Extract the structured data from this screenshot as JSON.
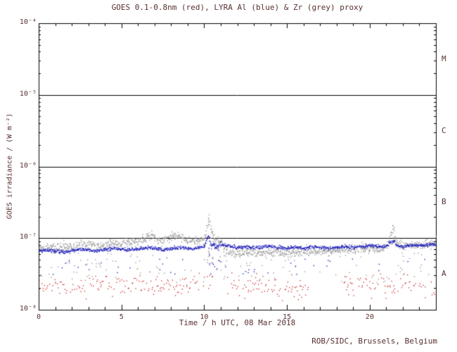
{
  "colors": {
    "text": "#5a2f2f",
    "axis": "#000000",
    "background": "#ffffff",
    "red_series": "#cc2020",
    "blue_series": "#2020bb",
    "grey_series": "#9a9a9a"
  },
  "chart_data": {
    "type": "scatter",
    "title": "GOES 0.1-0.8nm (red), LYRA Al (blue) & Zr (grey) proxy",
    "xlabel": "Time / h UTC, 08 Mar 2018",
    "ylabel": "GOES irradiance / (W m⁻²)",
    "footer": "ROB/SIDC, Brussels, Belgium",
    "xlim": [
      0,
      24
    ],
    "ylim_log10": [
      -8,
      -4
    ],
    "x_major_ticks": [
      0,
      5,
      10,
      15,
      20
    ],
    "x_minor_step_h": 1,
    "y_tick_labels": [
      "10⁻⁴",
      "10⁻⁵",
      "10⁻⁶",
      "10⁻⁷",
      "10⁻⁸"
    ],
    "y_tick_exponents": [
      -4,
      -5,
      -6,
      -7,
      -8
    ],
    "grid": false,
    "legend_position": "in-title",
    "flare_class_boundary_lines_log10": [
      -5,
      -6,
      -7
    ],
    "flare_class_labels": [
      {
        "label": "M",
        "log10_mid": -4.5
      },
      {
        "label": "C",
        "log10_mid": -5.5
      },
      {
        "label": "B",
        "log10_mid": -6.5
      },
      {
        "label": "A",
        "log10_mid": -7.5
      }
    ],
    "series": [
      {
        "name": "LYRA Zr proxy",
        "color": "#9a9a9a",
        "marker_px": 1.4,
        "step_h": 0.02,
        "drop_prob": 0.08,
        "noise_log10": 0.03,
        "gaps": [],
        "anchors": [
          [
            0,
            7.2e-08
          ],
          [
            0.5,
            7.6e-08
          ],
          [
            1,
            7.4e-08
          ],
          [
            1.5,
            7.8e-08
          ],
          [
            2,
            7.5e-08
          ],
          [
            2.5,
            8e-08
          ],
          [
            3,
            8.3e-08
          ],
          [
            3.5,
            7.9e-08
          ],
          [
            4,
            8.2e-08
          ],
          [
            4.5,
            8.6e-08
          ],
          [
            5,
            8.4e-08
          ],
          [
            5.5,
            8.8e-08
          ],
          [
            6,
            9.3e-08
          ],
          [
            6.5,
            1e-07
          ],
          [
            6.8,
            1.08e-07
          ],
          [
            7,
            1.02e-07
          ],
          [
            7.3,
            9.4e-08
          ],
          [
            7.6,
            9.8e-08
          ],
          [
            8,
            1.04e-07
          ],
          [
            8.3,
            1.1e-07
          ],
          [
            8.6,
            1.04e-07
          ],
          [
            9,
            9.6e-08
          ],
          [
            9.3,
            9.2e-08
          ],
          [
            9.6,
            9e-08
          ],
          [
            10,
            9.6e-08
          ],
          [
            10.25,
            1.9e-07
          ],
          [
            10.45,
            1.2e-07
          ],
          [
            10.7,
            9.5e-08
          ],
          [
            11,
            8.8e-08
          ],
          [
            11.2,
            7.2e-08
          ],
          [
            11.5,
            6.4e-08
          ],
          [
            12,
            6.2e-08
          ],
          [
            12.5,
            6.4e-08
          ],
          [
            13,
            6.1e-08
          ],
          [
            13.5,
            6.3e-08
          ],
          [
            14,
            6.6e-08
          ],
          [
            14.5,
            6.3e-08
          ],
          [
            15,
            6.2e-08
          ],
          [
            15.5,
            6.5e-08
          ],
          [
            16,
            6.4e-08
          ],
          [
            16.5,
            6.7e-08
          ],
          [
            17,
            6.6e-08
          ],
          [
            17.5,
            6.5e-08
          ],
          [
            18,
            6.8e-08
          ],
          [
            18.5,
            7e-08
          ],
          [
            19,
            6.9e-08
          ],
          [
            19.5,
            7.1e-08
          ],
          [
            20,
            7.4e-08
          ],
          [
            20.5,
            7.2e-08
          ],
          [
            21,
            7.4e-08
          ],
          [
            21.4,
            1.45e-07
          ],
          [
            21.6,
            8.6e-08
          ],
          [
            22,
            7.9e-08
          ],
          [
            22.5,
            8.2e-08
          ],
          [
            23,
            8.1e-08
          ],
          [
            23.5,
            8.5e-08
          ],
          [
            24,
            8.9e-08
          ]
        ],
        "outlier_groups": [
          {
            "count": 120,
            "x_range": [
              0,
              24
            ],
            "log10_range": [
              -7.62,
              -7.2
            ]
          },
          {
            "count": 25,
            "x_range": [
              10.15,
              11.0
            ],
            "log10_range": [
              -7.45,
              -6.95
            ]
          }
        ]
      },
      {
        "name": "LYRA Al proxy",
        "color": "#2020bb",
        "marker_px": 1.4,
        "step_h": 0.02,
        "drop_prob": 0.05,
        "noise_log10": 0.012,
        "gaps": [],
        "anchors": [
          [
            0,
            6.6e-08
          ],
          [
            0.5,
            6.9e-08
          ],
          [
            1,
            6.7e-08
          ],
          [
            1.5,
            6.5e-08
          ],
          [
            2,
            6.8e-08
          ],
          [
            2.5,
            7.1e-08
          ],
          [
            3,
            6.9e-08
          ],
          [
            3.5,
            6.7e-08
          ],
          [
            4,
            7e-08
          ],
          [
            4.5,
            7.3e-08
          ],
          [
            5,
            7.1e-08
          ],
          [
            5.5,
            6.9e-08
          ],
          [
            6,
            7.2e-08
          ],
          [
            6.5,
            7.5e-08
          ],
          [
            7,
            7.3e-08
          ],
          [
            7.5,
            7e-08
          ],
          [
            8,
            7.2e-08
          ],
          [
            8.5,
            7.5e-08
          ],
          [
            9,
            7.3e-08
          ],
          [
            9.5,
            7.4e-08
          ],
          [
            10,
            7.8e-08
          ],
          [
            10.25,
            1.15e-07
          ],
          [
            10.35,
            8.5e-08
          ],
          [
            10.7,
            7.6e-08
          ],
          [
            11,
            8.3e-08
          ],
          [
            11.3,
            8e-08
          ],
          [
            11.6,
            7.7e-08
          ],
          [
            12,
            7.5e-08
          ],
          [
            12.5,
            7.7e-08
          ],
          [
            13,
            7.4e-08
          ],
          [
            13.5,
            7.6e-08
          ],
          [
            14,
            7.8e-08
          ],
          [
            14.5,
            7.5e-08
          ],
          [
            15,
            7.3e-08
          ],
          [
            15.5,
            7.6e-08
          ],
          [
            16,
            7.4e-08
          ],
          [
            16.5,
            7.7e-08
          ],
          [
            17,
            7.5e-08
          ],
          [
            17.5,
            7.3e-08
          ],
          [
            18,
            7.6e-08
          ],
          [
            18.5,
            7.8e-08
          ],
          [
            19,
            7.5e-08
          ],
          [
            19.5,
            7.7e-08
          ],
          [
            20,
            8e-08
          ],
          [
            20.5,
            7.7e-08
          ],
          [
            21,
            7.9e-08
          ],
          [
            21.4,
            9.5e-08
          ],
          [
            21.6,
            8e-08
          ],
          [
            22,
            7.8e-08
          ],
          [
            22.5,
            8.1e-08
          ],
          [
            23,
            7.9e-08
          ],
          [
            23.5,
            8.2e-08
          ],
          [
            24,
            8.3e-08
          ]
        ],
        "outlier_groups": [
          {
            "count": 40,
            "x_range": [
              0,
              24
            ],
            "log10_range": [
              -7.5,
              -7.25
            ]
          },
          {
            "count": 15,
            "x_range": [
              10.2,
              11.0
            ],
            "log10_range": [
              -7.4,
              -7.05
            ]
          }
        ]
      },
      {
        "name": "GOES 0.1-0.8nm",
        "color": "#cc2020",
        "marker_px": 1.3,
        "step_h": 0.045,
        "drop_prob": 0.35,
        "noise_log10": 0.075,
        "gaps": [
          [
            10.5,
            11.3
          ],
          [
            16.4,
            18.4
          ]
        ],
        "anchors": [
          [
            0,
            2.1e-08
          ],
          [
            1,
            2e-08
          ],
          [
            2,
            2.2e-08
          ],
          [
            3,
            2.1e-08
          ],
          [
            4,
            2.3e-08
          ],
          [
            5,
            2.2e-08
          ],
          [
            6,
            2.4e-08
          ],
          [
            7,
            2.3e-08
          ],
          [
            8,
            2.2e-08
          ],
          [
            9,
            2.4e-08
          ],
          [
            10,
            2.6e-08
          ],
          [
            10.3,
            3e-08
          ],
          [
            11.5,
            2.2e-08
          ],
          [
            12,
            2.1e-08
          ],
          [
            13,
            2.2e-08
          ],
          [
            14,
            2.1e-08
          ],
          [
            15,
            2e-08
          ],
          [
            16,
            2.1e-08
          ],
          [
            18.5,
            2.1e-08
          ],
          [
            19,
            2.2e-08
          ],
          [
            20,
            2.1e-08
          ],
          [
            21,
            2.3e-08
          ],
          [
            22,
            2.2e-08
          ],
          [
            23,
            2.1e-08
          ],
          [
            24,
            2.2e-08
          ]
        ],
        "outlier_groups": []
      }
    ]
  }
}
